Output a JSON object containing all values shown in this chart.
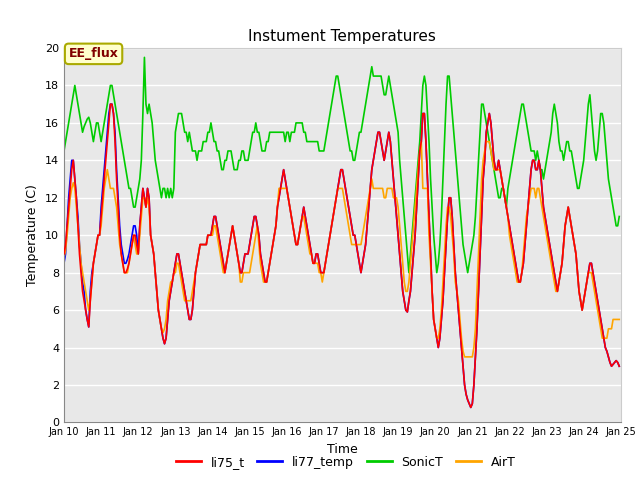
{
  "title": "Instument Temperatures",
  "xlabel": "Time",
  "ylabel": "Temperature (C)",
  "ylim": [
    0,
    20
  ],
  "background_color": "#e8e8e8",
  "plot_bg": "#e8e8e8",
  "grid_color": "#ffffff",
  "annotation_text": "EE_flux",
  "annotation_bg": "#ffffcc",
  "annotation_border": "#aaaa00",
  "annotation_text_color": "#800000",
  "legend_labels": [
    "li75_t",
    "li77_temp",
    "SonicT",
    "AirT"
  ],
  "line_colors": [
    "#ff0000",
    "#0000ff",
    "#00cc00",
    "#ffa500"
  ],
  "line_width": 1.2,
  "xtick_labels": [
    "Jan 10",
    "Jan 11",
    "Jan 12",
    "Jan 13",
    "Jan 14",
    "Jan 15",
    "Jan 16",
    "Jan 17",
    "Jan 18",
    "Jan 19",
    "Jan 20",
    "Jan 21",
    "Jan 22",
    "Jan 23",
    "Jan 24",
    "Jan 25"
  ],
  "ytick_labels": [
    "0",
    "2",
    "4",
    "6",
    "8",
    "10",
    "12",
    "14",
    "16",
    "18",
    "20"
  ],
  "ytick_positions": [
    0,
    2,
    4,
    6,
    8,
    10,
    12,
    14,
    16,
    18,
    20
  ]
}
